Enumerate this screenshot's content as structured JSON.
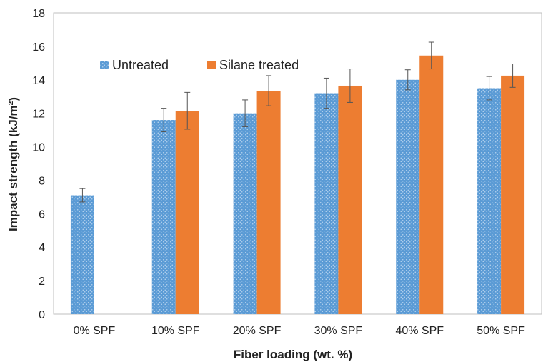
{
  "chart_data": {
    "type": "bar",
    "categories": [
      "0% SPF",
      "10% SPF",
      "20% SPF",
      "30% SPF",
      "40% SPF",
      "50% SPF"
    ],
    "series": [
      {
        "name": "Untreated",
        "color": "#5b9bd5",
        "pattern": "dotted",
        "values": [
          7.1,
          11.6,
          12.0,
          13.2,
          14.0,
          13.5
        ],
        "errors": [
          0.4,
          0.7,
          0.8,
          0.9,
          0.6,
          0.7
        ]
      },
      {
        "name": "Silane treated",
        "color": "#ed7d31",
        "pattern": "solid",
        "values": [
          null,
          12.15,
          13.35,
          13.65,
          15.45,
          14.25
        ],
        "errors": [
          null,
          1.1,
          0.9,
          1.0,
          0.8,
          0.7
        ]
      }
    ],
    "title": "",
    "xlabel": "Fiber loading (wt. %)",
    "ylabel": "Impact strength (kJ/m²)",
    "ylim": [
      0,
      18
    ],
    "yticks": [
      0,
      2,
      4,
      6,
      8,
      10,
      12,
      14,
      16,
      18
    ],
    "grid": false,
    "legend_position": "top-left"
  }
}
